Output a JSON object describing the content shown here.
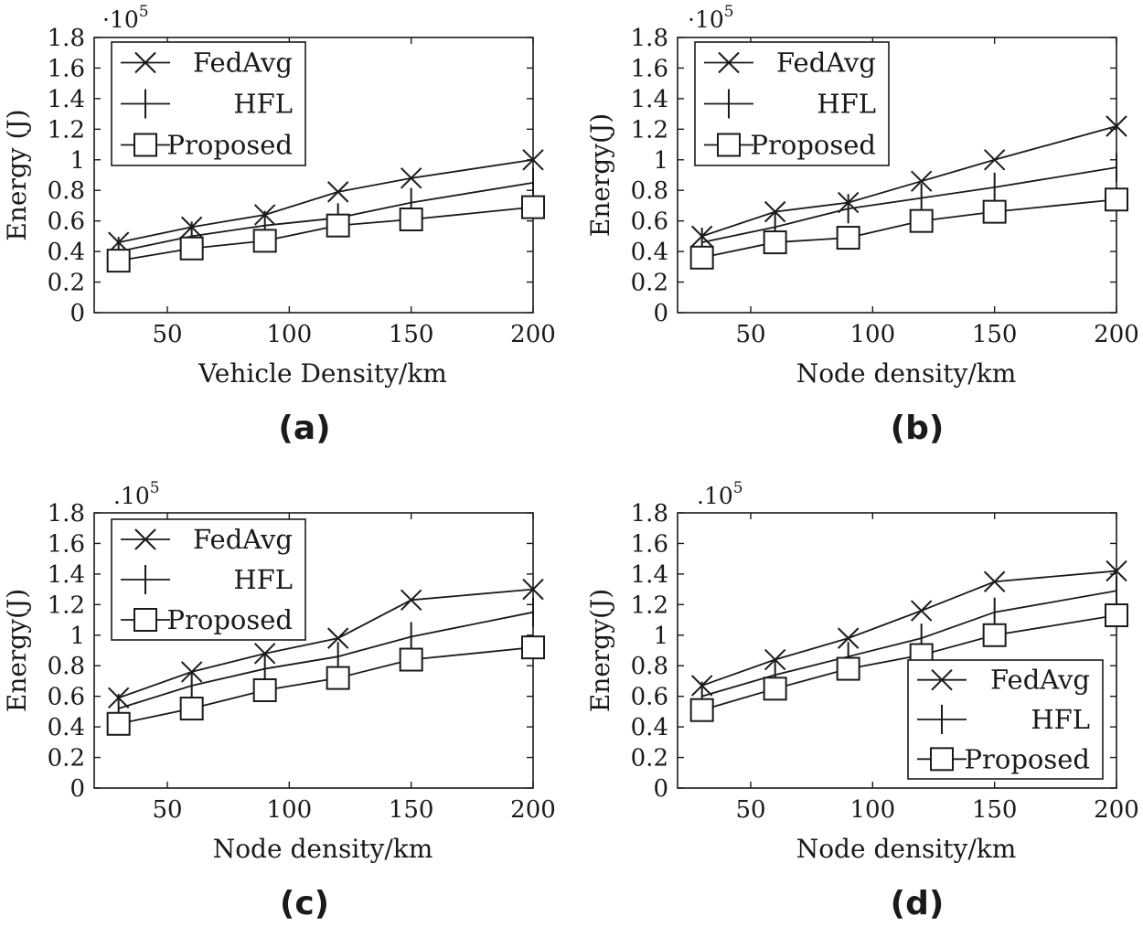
{
  "figure": {
    "panel_labels": [
      "(a)",
      "(b)",
      "(c)",
      "(d)"
    ],
    "multiplier_text": [
      "·10",
      "·10",
      ".10",
      ".10"
    ],
    "multiplier_exponent": "5"
  },
  "chart_data": [
    {
      "type": "line",
      "panel": "(a)",
      "xlabel": "Vehicle Density/km",
      "ylabel": "Energy (J)",
      "y_scale_multiplier": "10^5",
      "x": [
        30,
        60,
        90,
        120,
        150,
        200
      ],
      "xlim": [
        20,
        200
      ],
      "ylim": [
        0,
        1.8
      ],
      "xticks": [
        50,
        100,
        150,
        200
      ],
      "yticks": [
        0,
        0.2,
        0.4,
        0.6,
        0.8,
        1,
        1.2,
        1.4,
        1.6,
        1.8
      ],
      "legend_position": "top-left",
      "series": [
        {
          "name": "FedAvg",
          "marker": "x",
          "values": [
            0.46,
            0.56,
            0.64,
            0.79,
            0.88,
            1.0
          ]
        },
        {
          "name": "HFL",
          "marker": "|",
          "values": [
            0.4,
            0.5,
            0.57,
            0.62,
            0.72,
            0.85
          ]
        },
        {
          "name": "Proposed",
          "marker": "square",
          "values": [
            0.34,
            0.42,
            0.47,
            0.57,
            0.61,
            0.69
          ]
        }
      ]
    },
    {
      "type": "line",
      "panel": "(b)",
      "xlabel": "Node density/km",
      "ylabel": "Energy(J)",
      "y_scale_multiplier": "10^5",
      "x": [
        30,
        60,
        90,
        120,
        150,
        200
      ],
      "xlim": [
        20,
        200
      ],
      "ylim": [
        0,
        1.8
      ],
      "xticks": [
        50,
        100,
        150,
        200
      ],
      "yticks": [
        0,
        0.2,
        0.4,
        0.6,
        0.8,
        1,
        1.2,
        1.4,
        1.6,
        1.8
      ],
      "legend_position": "top-left",
      "series": [
        {
          "name": "FedAvg",
          "marker": "x",
          "values": [
            0.5,
            0.66,
            0.72,
            0.86,
            1.0,
            1.22
          ]
        },
        {
          "name": "HFL",
          "marker": "|",
          "values": [
            0.46,
            0.56,
            0.68,
            0.75,
            0.82,
            0.95
          ]
        },
        {
          "name": "Proposed",
          "marker": "square",
          "values": [
            0.36,
            0.46,
            0.49,
            0.6,
            0.66,
            0.74
          ]
        }
      ]
    },
    {
      "type": "line",
      "panel": "(c)",
      "xlabel": "Node density/km",
      "ylabel": "Energy(J)",
      "y_scale_multiplier": "10^5",
      "x": [
        30,
        60,
        90,
        120,
        150,
        200
      ],
      "xlim": [
        20,
        200
      ],
      "ylim": [
        0,
        1.8
      ],
      "xticks": [
        50,
        100,
        150,
        200
      ],
      "yticks": [
        0,
        0.2,
        0.4,
        0.6,
        0.8,
        1,
        1.2,
        1.4,
        1.6,
        1.8
      ],
      "legend_position": "top-left",
      "series": [
        {
          "name": "FedAvg",
          "marker": "x",
          "values": [
            0.59,
            0.76,
            0.88,
            0.98,
            1.23,
            1.3
          ]
        },
        {
          "name": "HFL",
          "marker": "|",
          "values": [
            0.52,
            0.67,
            0.78,
            0.86,
            0.99,
            1.15
          ]
        },
        {
          "name": "Proposed",
          "marker": "square",
          "values": [
            0.42,
            0.52,
            0.64,
            0.72,
            0.84,
            0.92
          ]
        }
      ]
    },
    {
      "type": "line",
      "panel": "(d)",
      "xlabel": "Node density/km",
      "ylabel": "Energy(J)",
      "y_scale_multiplier": "10^5",
      "x": [
        30,
        60,
        90,
        120,
        150,
        200
      ],
      "xlim": [
        20,
        200
      ],
      "ylim": [
        0,
        1.8
      ],
      "xticks": [
        50,
        100,
        150,
        200
      ],
      "yticks": [
        0,
        0.2,
        0.4,
        0.6,
        0.8,
        1,
        1.2,
        1.4,
        1.6,
        1.8
      ],
      "legend_position": "bottom-right",
      "series": [
        {
          "name": "FedAvg",
          "marker": "x",
          "values": [
            0.67,
            0.84,
            0.98,
            1.16,
            1.35,
            1.42
          ]
        },
        {
          "name": "HFL",
          "marker": "|",
          "values": [
            0.6,
            0.74,
            0.86,
            0.98,
            1.15,
            1.29
          ]
        },
        {
          "name": "Proposed",
          "marker": "square",
          "values": [
            0.51,
            0.65,
            0.78,
            0.87,
            1.0,
            1.13
          ]
        }
      ]
    }
  ]
}
